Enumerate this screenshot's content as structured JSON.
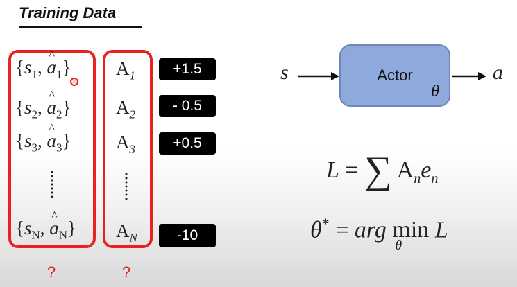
{
  "title": "Training Data",
  "pairs": [
    {
      "s": "s",
      "s_sub": "1",
      "a": "a",
      "a_sub": "1"
    },
    {
      "s": "s",
      "s_sub": "2",
      "a": "a",
      "a_sub": "2"
    },
    {
      "s": "s",
      "s_sub": "3",
      "a": "a",
      "a_sub": "3"
    },
    {
      "s": "s",
      "s_sub": "N",
      "a": "a",
      "a_sub": "N"
    }
  ],
  "advantages": [
    {
      "A": "A",
      "sub": "1"
    },
    {
      "A": "A",
      "sub": "2"
    },
    {
      "A": "A",
      "sub": "3"
    },
    {
      "A": "A",
      "sub": "N"
    }
  ],
  "rewards": [
    "+1.5",
    "- 0.5",
    "+0.5",
    "-10"
  ],
  "question_marks": [
    "?",
    "?"
  ],
  "actor": {
    "label": "Actor",
    "param": "θ",
    "input": "s",
    "output": "a"
  },
  "loss_formula": {
    "lhs": "L",
    "eq": "=",
    "sum": "∑",
    "A": "A",
    "A_sub": "n",
    "e": "e",
    "e_sub": "n"
  },
  "opt_formula": {
    "theta_star": "θ",
    "star": "*",
    "eq": "=",
    "arg": "arg",
    "min": "min",
    "min_under": "θ",
    "L": "L"
  },
  "colors": {
    "highlight": "#e8231f",
    "actor_fill": "#8ea9db",
    "reward_bg": "#000000"
  }
}
